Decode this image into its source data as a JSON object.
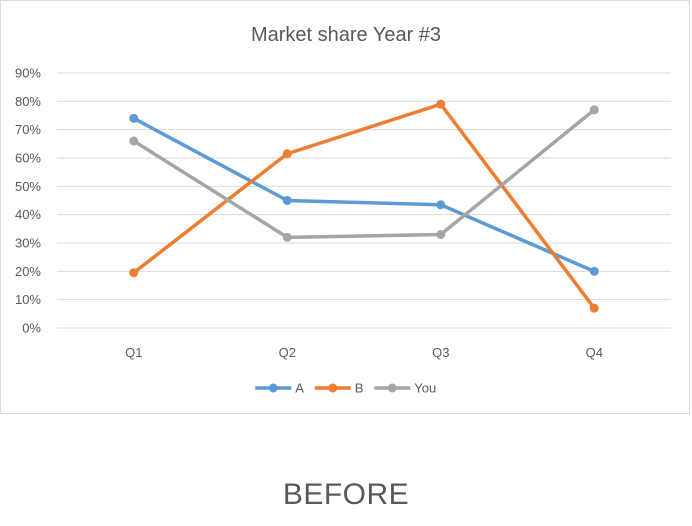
{
  "caption": "BEFORE",
  "chart_data": {
    "type": "line",
    "title": "Market share Year #3",
    "xlabel": "",
    "ylabel": "",
    "categories": [
      "Q1",
      "Q2",
      "Q3",
      "Q4"
    ],
    "ylim": [
      0,
      90
    ],
    "y_tick_step": 10,
    "y_tick_format": "percent",
    "grid": true,
    "legend_position": "bottom",
    "series": [
      {
        "name": "A",
        "color": "#5b9bd5",
        "values": [
          74,
          45,
          43.5,
          20
        ]
      },
      {
        "name": "B",
        "color": "#ed7d31",
        "values": [
          19.5,
          61.5,
          79,
          7
        ]
      },
      {
        "name": "You",
        "color": "#a5a5a5",
        "values": [
          66,
          32,
          33,
          77
        ]
      }
    ]
  }
}
